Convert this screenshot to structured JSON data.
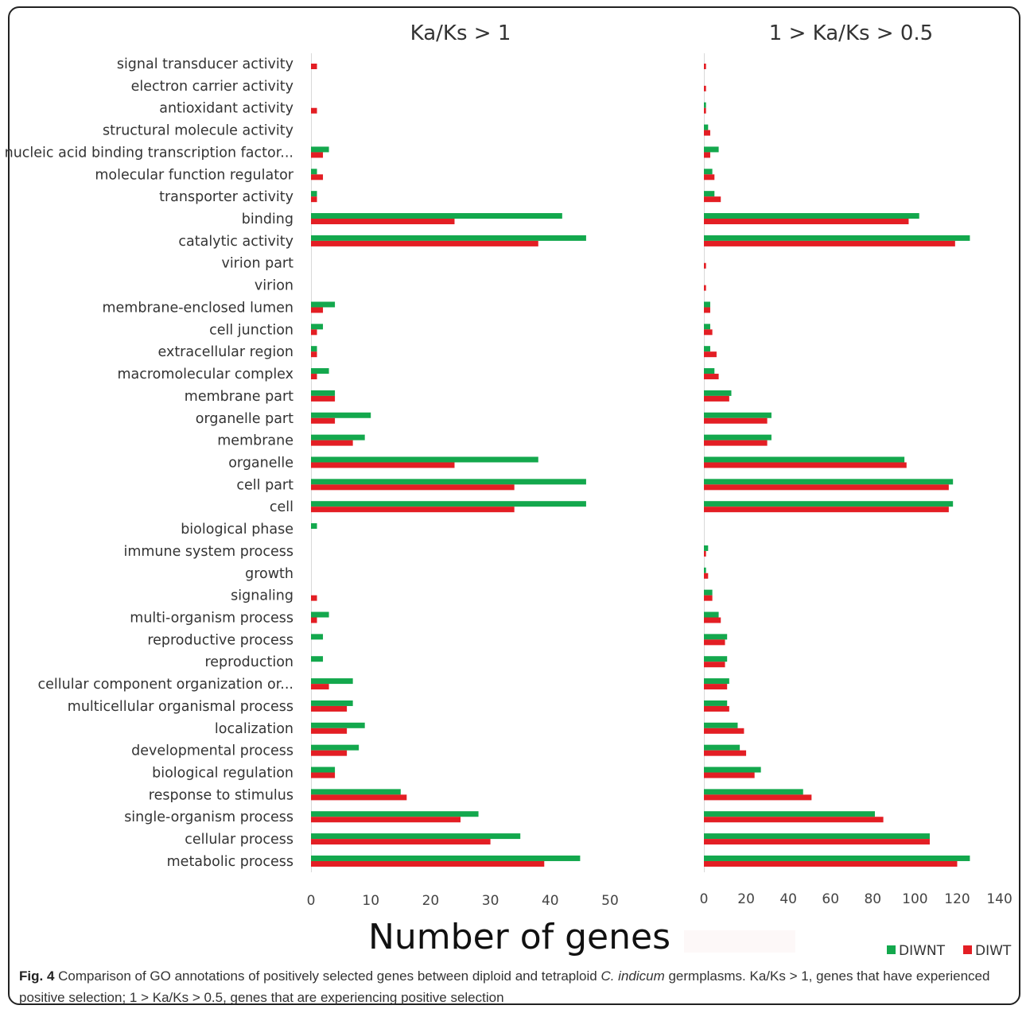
{
  "chart_data": {
    "type": "bar",
    "orientation": "horizontal",
    "grouped": true,
    "categories": [
      "signal transducer activity",
      "electron carrier activity",
      "antioxidant activity",
      "structural molecule activity",
      "nucleic acid binding transcription factor...",
      "molecular function regulator",
      "transporter activity",
      "binding",
      "catalytic activity",
      "virion part",
      "virion",
      "membrane-enclosed lumen",
      "cell junction",
      "extracellular region",
      "macromolecular complex",
      "membrane part",
      "organelle part",
      "membrane",
      "organelle",
      "cell part",
      "cell",
      "biological phase",
      "immune system process",
      "growth",
      "signaling",
      "multi-organism process",
      "reproductive process",
      "reproduction",
      "cellular component organization or...",
      "multicellular organismal process",
      "localization",
      "developmental process",
      "biological regulation",
      "response to stimulus",
      "single-organism process",
      "cellular process",
      "metabolic process"
    ],
    "panels": [
      {
        "title": "Ka/Ks > 1",
        "xlim": [
          0,
          50
        ],
        "xticks": [
          "0",
          "10",
          "20",
          "30",
          "40",
          "50"
        ],
        "series": [
          {
            "name": "DIWNT",
            "color": "#13a84d",
            "values": [
              0,
              0,
              0,
              0,
              3,
              1,
              1,
              42,
              46,
              0,
              0,
              4,
              2,
              1,
              3,
              4,
              10,
              9,
              38,
              46,
              46,
              1,
              0,
              0,
              0,
              3,
              2,
              2,
              7,
              7,
              9,
              8,
              4,
              15,
              28,
              35,
              45
            ]
          },
          {
            "name": "DIWT",
            "color": "#e31e24",
            "values": [
              1,
              0,
              1,
              0,
              2,
              2,
              1,
              24,
              38,
              0,
              0,
              2,
              1,
              1,
              1,
              4,
              4,
              7,
              24,
              34,
              34,
              0,
              0,
              0,
              1,
              1,
              0,
              0,
              3,
              6,
              6,
              6,
              4,
              16,
              25,
              30,
              39
            ]
          }
        ]
      },
      {
        "title": "1 > Ka/Ks > 0.5",
        "xlim": [
          0,
          140
        ],
        "xticks": [
          "0",
          "20",
          "40",
          "60",
          "80",
          "100",
          "120",
          "140"
        ],
        "series": [
          {
            "name": "DIWNT",
            "color": "#13a84d",
            "values": [
              0,
              0,
              1,
              2,
              7,
              4,
              5,
              102,
              126,
              0,
              0,
              3,
              3,
              3,
              5,
              13,
              32,
              32,
              95,
              118,
              118,
              0,
              2,
              1,
              4,
              7,
              11,
              11,
              12,
              11,
              16,
              17,
              27,
              47,
              81,
              107,
              126
            ]
          },
          {
            "name": "DIWT",
            "color": "#e31e24",
            "values": [
              1,
              1,
              1,
              3,
              3,
              5,
              8,
              97,
              119,
              1,
              1,
              3,
              4,
              6,
              7,
              12,
              30,
              30,
              96,
              116,
              116,
              0,
              1,
              2,
              4,
              8,
              10,
              10,
              11,
              12,
              19,
              20,
              24,
              51,
              85,
              107,
              120
            ]
          }
        ]
      }
    ],
    "xlabel": "Number of genes",
    "legend": [
      "DIWNT",
      "DIWT"
    ],
    "legend_position": "bottom-right",
    "grid": false
  },
  "caption": {
    "label": "Fig. 4",
    "text_before": " Comparison of GO annotations of positively selected genes between diploid and tetraploid ",
    "species": "C. indicum",
    "text_after": " germplasms. Ka/Ks > 1, genes that have experienced positive selection; 1 > Ka/Ks > 0.5, genes that are experiencing positive selection"
  }
}
